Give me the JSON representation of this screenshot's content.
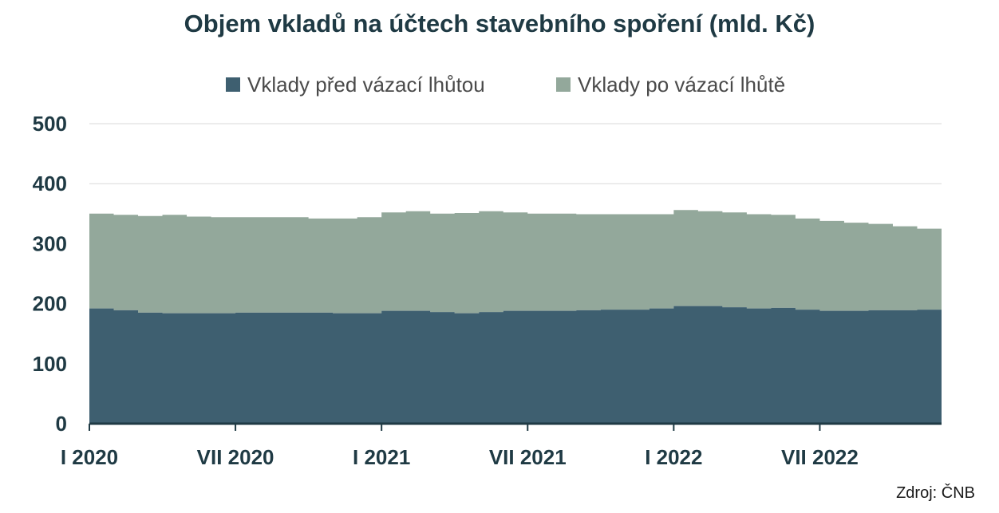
{
  "colors": {
    "series1": "#3e5f70",
    "series2": "#93a89b",
    "axis": "#1f3a44",
    "grid": "#d9d9d9",
    "text": "#1f3a44"
  },
  "source": "Zdroj: ČNB",
  "chart_data": {
    "type": "area",
    "stacked": true,
    "title": "Objem vkladů na účtech stavebního spoření (mld. Kč)",
    "xlabel": "",
    "ylabel": "",
    "ylim": [
      0,
      500
    ],
    "yticks": [
      "0",
      "100",
      "200",
      "300",
      "400",
      "500"
    ],
    "grid": true,
    "legend_position": "top",
    "x": [
      "I 2020",
      "II 2020",
      "III 2020",
      "IV 2020",
      "V 2020",
      "VI 2020",
      "VII 2020",
      "VIII 2020",
      "IX 2020",
      "X 2020",
      "XI 2020",
      "XII 2020",
      "I 2021",
      "II 2021",
      "III 2021",
      "IV 2021",
      "V 2021",
      "VI 2021",
      "VII 2021",
      "VIII 2021",
      "IX 2021",
      "X 2021",
      "XI 2021",
      "XII 2021",
      "I 2022",
      "II 2022",
      "III 2022",
      "IV 2022",
      "V 2022",
      "VI 2022",
      "VII 2022",
      "VIII 2022",
      "IX 2022",
      "X 2022",
      "XI 2022"
    ],
    "xtick_labels": [
      {
        "index": 0,
        "label": "I 2020"
      },
      {
        "index": 6,
        "label": "VII 2020"
      },
      {
        "index": 12,
        "label": "I 2021"
      },
      {
        "index": 18,
        "label": "VII 2021"
      },
      {
        "index": 24,
        "label": "I 2022"
      },
      {
        "index": 30,
        "label": "VII 2022"
      }
    ],
    "series": [
      {
        "name": "Vklady před vázací lhůtou",
        "values": [
          192,
          189,
          185,
          184,
          184,
          184,
          185,
          185,
          185,
          185,
          184,
          184,
          188,
          188,
          186,
          184,
          186,
          188,
          188,
          188,
          189,
          190,
          190,
          192,
          196,
          196,
          194,
          192,
          193,
          190,
          188,
          188,
          189,
          189,
          190
        ]
      },
      {
        "name": "Vklady po vázací lhůtě",
        "values": [
          158,
          159,
          161,
          164,
          161,
          160,
          159,
          159,
          159,
          157,
          158,
          160,
          164,
          166,
          164,
          167,
          168,
          164,
          162,
          162,
          160,
          159,
          159,
          157,
          160,
          158,
          158,
          157,
          155,
          152,
          150,
          147,
          144,
          140,
          135
        ]
      }
    ]
  }
}
